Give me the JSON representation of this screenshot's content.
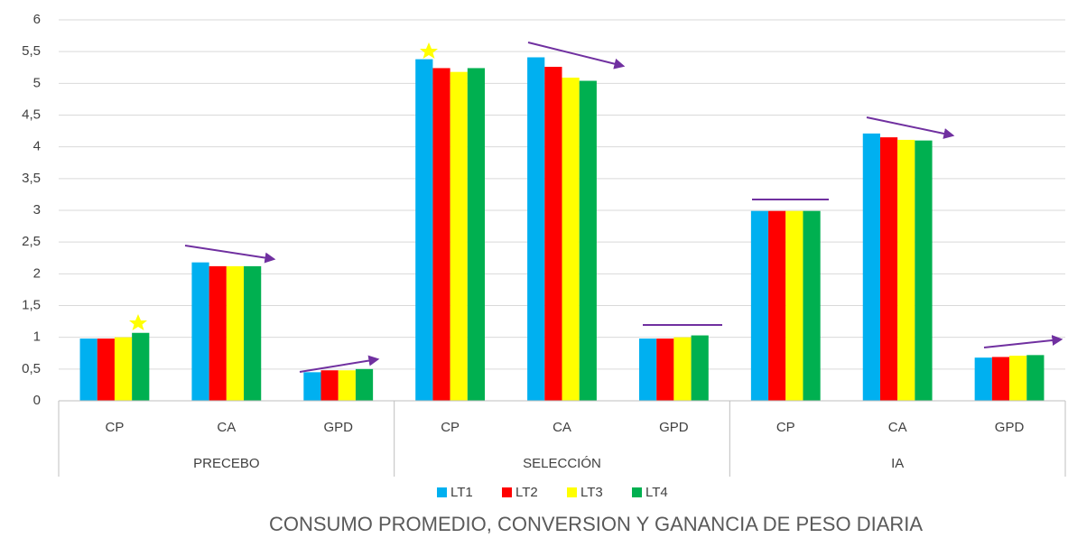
{
  "chart_data": {
    "type": "bar",
    "title": "CONSUMO PROMEDIO, CONVERSION Y GANANCIA DE PESO DIARIA",
    "groups": [
      "PRECEBO",
      "SELECCIÓN",
      "IA"
    ],
    "categories": [
      "CP",
      "CA",
      "GPD",
      "CP",
      "CA",
      "GPD",
      "CP",
      "CA",
      "GPD"
    ],
    "series": [
      {
        "name": "LT1",
        "color": "#00b0f0",
        "values": [
          0.98,
          2.18,
          0.45,
          5.38,
          5.41,
          0.98,
          2.99,
          4.21,
          0.68
        ]
      },
      {
        "name": "LT2",
        "color": "#ff0000",
        "values": [
          0.98,
          2.12,
          0.48,
          5.24,
          5.26,
          0.98,
          2.99,
          4.15,
          0.69
        ]
      },
      {
        "name": "LT3",
        "color": "#ffff00",
        "values": [
          1.0,
          2.12,
          0.48,
          5.18,
          5.09,
          1.0,
          2.99,
          4.11,
          0.71
        ]
      },
      {
        "name": "LT4",
        "color": "#00b050",
        "values": [
          1.07,
          2.12,
          0.5,
          5.24,
          5.04,
          1.03,
          2.99,
          4.1,
          0.72
        ]
      }
    ],
    "ylim": [
      0,
      6
    ],
    "yticks": [
      0,
      {
        "value": 0.5,
        "label": "0,5"
      },
      1,
      {
        "value": 1.5,
        "label": "1,5"
      },
      2,
      {
        "value": 2.5,
        "label": "2,5"
      },
      3,
      {
        "value": 3.5,
        "label": "3,5"
      },
      4,
      {
        "value": 4.5,
        "label": "4,5"
      },
      5,
      {
        "value": 5.5,
        "label": "5,5"
      },
      6
    ],
    "grid": true
  }
}
